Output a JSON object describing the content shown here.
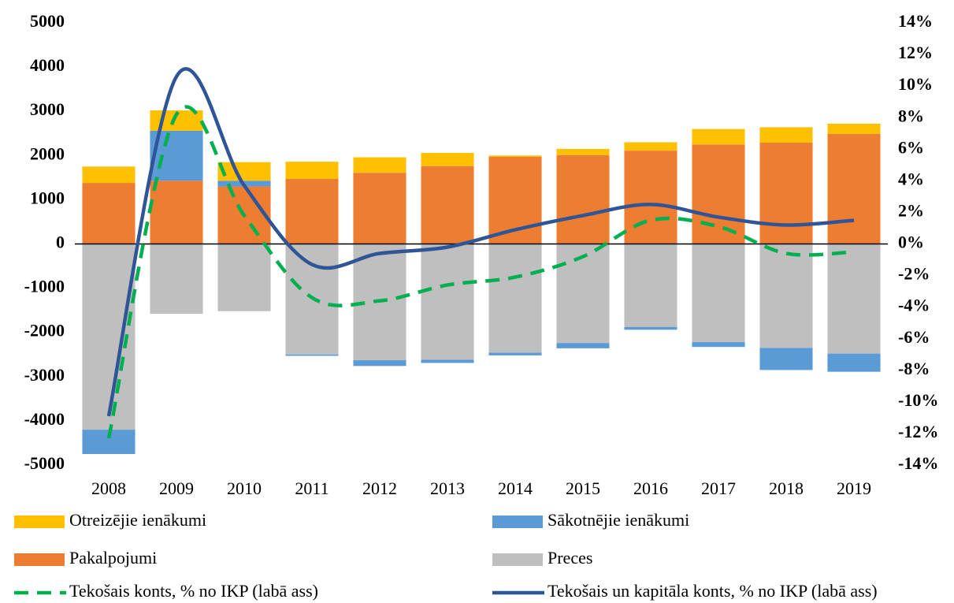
{
  "chart_data": {
    "type": "bar",
    "categories": [
      "2008",
      "2009",
      "2010",
      "2011",
      "2012",
      "2013",
      "2014",
      "2015",
      "2016",
      "2017",
      "2018",
      "2019"
    ],
    "series": [
      {
        "name": "Otreizējie ienākumi",
        "color": "#ffc000",
        "values": [
          370,
          460,
          420,
          390,
          350,
          300,
          30,
          140,
          190,
          350,
          350,
          230
        ]
      },
      {
        "name": "Sākotnējie ienākumi",
        "color": "#5b9bd5",
        "values": [
          -550,
          1130,
          130,
          -30,
          -130,
          -70,
          -60,
          -120,
          -60,
          -110,
          -500,
          -410
        ]
      },
      {
        "name": "Pakalpojumi",
        "color": "#ed7d31",
        "values": [
          1380,
          1430,
          1300,
          1470,
          1610,
          1760,
          1970,
          2010,
          2110,
          2250,
          2290,
          2490
        ]
      },
      {
        "name": "Preces",
        "color": "#bfbfbf",
        "values": [
          -4200,
          -1580,
          -1520,
          -2500,
          -2630,
          -2620,
          -2460,
          -2240,
          -1880,
          -2220,
          -2350,
          -2480
        ]
      },
      {
        "name": "Tekošais konts, % no IKP (labā ass)",
        "type": "line",
        "dashed": true,
        "axis": "y2",
        "color": "#00b050",
        "values": [
          -12.3,
          8.2,
          1.8,
          -3.4,
          -3.6,
          -2.6,
          -2.1,
          -0.8,
          1.5,
          1.1,
          -0.6,
          -0.5
        ]
      },
      {
        "name": "Tekošais un kapitāla konts, % no IKP (labā ass)",
        "type": "line",
        "axis": "y2",
        "color": "#2f5597",
        "values": [
          -10.9,
          10.6,
          3.7,
          -1.3,
          -0.6,
          -0.2,
          0.9,
          1.8,
          2.5,
          1.7,
          1.2,
          1.5
        ]
      }
    ],
    "stacked": true,
    "ylim": [
      -5000,
      5000
    ],
    "yticks": [
      -5000,
      -4000,
      -3000,
      -2000,
      -1000,
      0,
      1000,
      2000,
      3000,
      4000,
      5000
    ],
    "y2lim": [
      -14,
      14
    ],
    "y2ticks": [
      {
        "value": -14,
        "label": "-14%"
      },
      {
        "value": -12,
        "label": "-12%"
      },
      {
        "value": -10,
        "label": "-10%"
      },
      {
        "value": -8,
        "label": "-8%"
      },
      {
        "value": -6,
        "label": "-6%"
      },
      {
        "value": -4,
        "label": "-4%"
      },
      {
        "value": -2,
        "label": "-2%"
      },
      {
        "value": 0,
        "label": "0%"
      },
      {
        "value": 2,
        "label": "2%"
      },
      {
        "value": 4,
        "label": "4%"
      },
      {
        "value": 6,
        "label": "6%"
      },
      {
        "value": 8,
        "label": "8%"
      },
      {
        "value": 10,
        "label": "10%"
      },
      {
        "value": 12,
        "label": "12%"
      },
      {
        "value": 14,
        "label": "14%"
      }
    ],
    "grid": false,
    "legend": "bottom"
  }
}
